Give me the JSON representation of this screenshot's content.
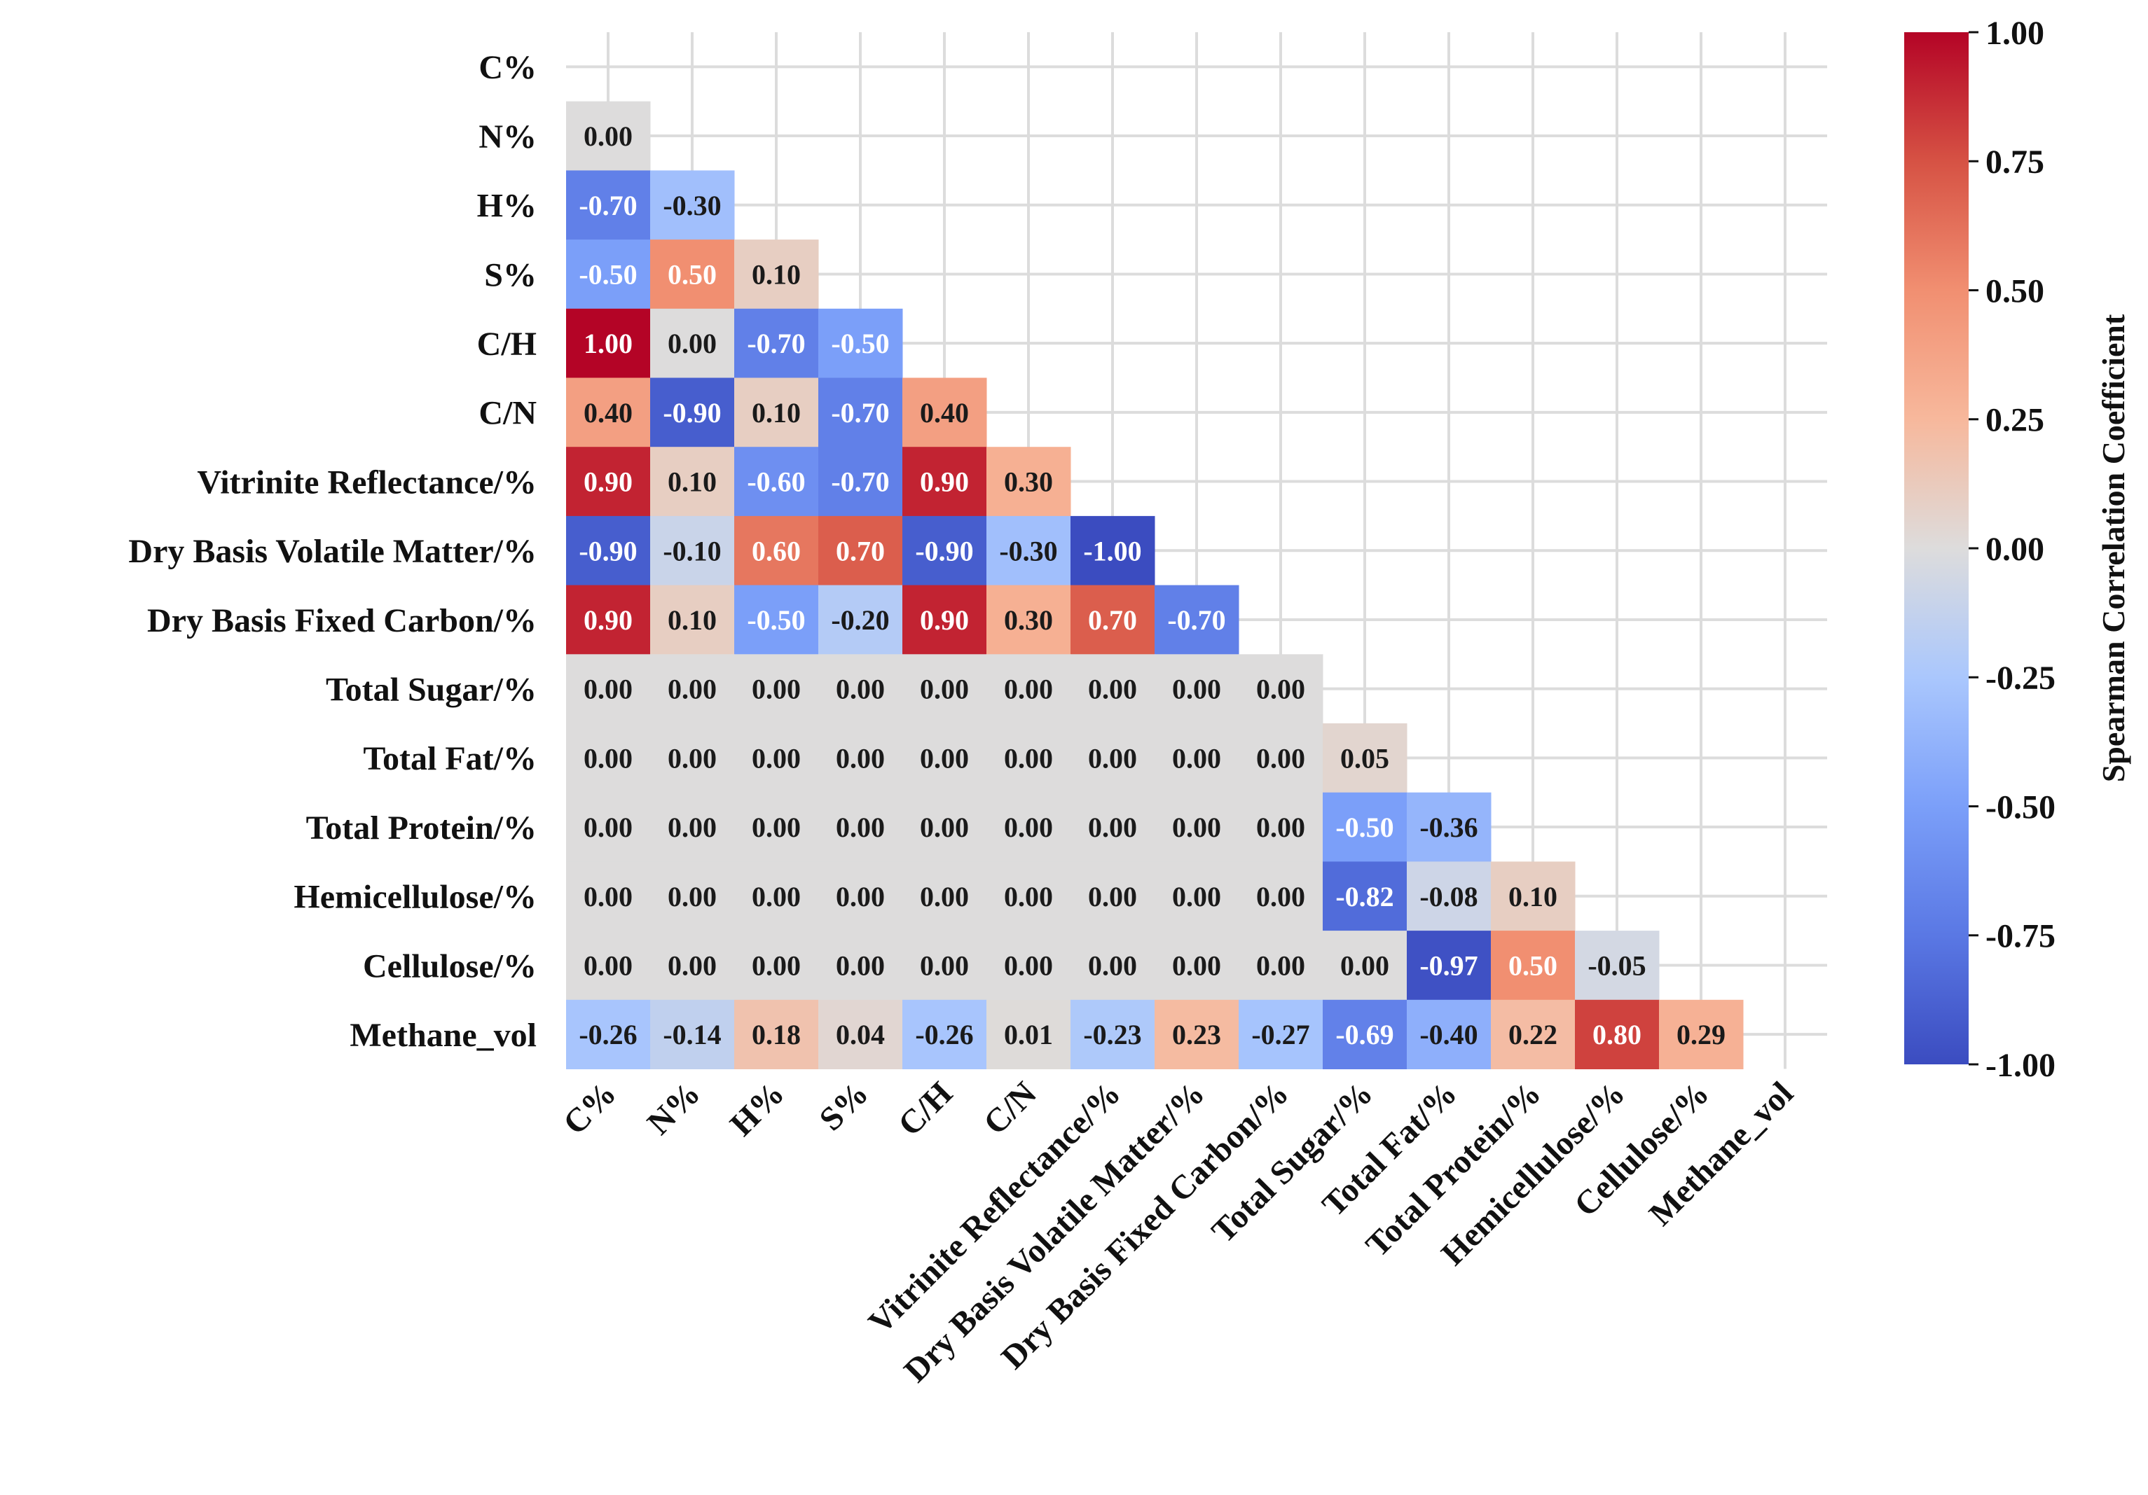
{
  "chart_data": {
    "type": "heatmap",
    "title": "",
    "xlabel": "",
    "ylabel": "",
    "labels": [
      "C%",
      "N%",
      "H%",
      "S%",
      "C/H",
      "C/N",
      "Vitrinite Reflectance/%",
      "Dry Basis Volatile Matter/%",
      "Dry Basis Fixed Carbon/%",
      "Total Sugar/%",
      "Total Fat/%",
      "Total Protein/%",
      "Hemicellulose/%",
      "Cellulose/%",
      "Methane_vol"
    ],
    "matrix": [
      [],
      [
        "0.00"
      ],
      [
        "-0.70",
        "-0.30"
      ],
      [
        "-0.50",
        "0.50",
        "0.10"
      ],
      [
        "1.00",
        "0.00",
        "-0.70",
        "-0.50"
      ],
      [
        "0.40",
        "-0.90",
        "0.10",
        "-0.70",
        "0.40"
      ],
      [
        "0.90",
        "0.10",
        "-0.60",
        "-0.70",
        "0.90",
        "0.30"
      ],
      [
        "-0.90",
        "-0.10",
        "0.60",
        "0.70",
        "-0.90",
        "-0.30",
        "-1.00"
      ],
      [
        "0.90",
        "0.10",
        "-0.50",
        "-0.20",
        "0.90",
        "0.30",
        "0.70",
        "-0.70"
      ],
      [
        "0.00",
        "0.00",
        "0.00",
        "0.00",
        "0.00",
        "0.00",
        "0.00",
        "0.00",
        "0.00"
      ],
      [
        "0.00",
        "0.00",
        "0.00",
        "0.00",
        "0.00",
        "0.00",
        "0.00",
        "0.00",
        "0.00",
        "0.05"
      ],
      [
        "0.00",
        "0.00",
        "0.00",
        "0.00",
        "0.00",
        "0.00",
        "0.00",
        "0.00",
        "0.00",
        "-0.50",
        "-0.36"
      ],
      [
        "0.00",
        "0.00",
        "0.00",
        "0.00",
        "0.00",
        "0.00",
        "0.00",
        "0.00",
        "0.00",
        "-0.82",
        "-0.08",
        "0.10"
      ],
      [
        "0.00",
        "0.00",
        "0.00",
        "0.00",
        "0.00",
        "0.00",
        "0.00",
        "0.00",
        "0.00",
        "0.00",
        "-0.97",
        "0.50",
        "-0.05"
      ],
      [
        "-0.26",
        "-0.14",
        "0.18",
        "0.04",
        "-0.26",
        "0.01",
        "-0.23",
        "0.23",
        "-0.27",
        "-0.69",
        "-0.40",
        "0.22",
        "0.80",
        "0.29"
      ]
    ],
    "colorbar": {
      "label": "Spearman Correlation Coefficient",
      "range": [
        -1.0,
        1.0
      ],
      "ticks": [
        "1.00",
        "0.75",
        "0.50",
        "0.25",
        "0.00",
        "-0.25",
        "-0.50",
        "-0.75",
        "-1.00"
      ],
      "colormap": "coolwarm",
      "stops": [
        [
          -1.0,
          "#3b4cc0"
        ],
        [
          -0.75,
          "#5a78e4"
        ],
        [
          -0.5,
          "#7b9ff9"
        ],
        [
          -0.25,
          "#aac7fd"
        ],
        [
          0.0,
          "#dddcdc"
        ],
        [
          0.25,
          "#f7b89c"
        ],
        [
          0.5,
          "#f18f71"
        ],
        [
          0.75,
          "#d65244"
        ],
        [
          1.0,
          "#b40426"
        ]
      ]
    },
    "mask": "upper-triangle-including-diagonal"
  }
}
